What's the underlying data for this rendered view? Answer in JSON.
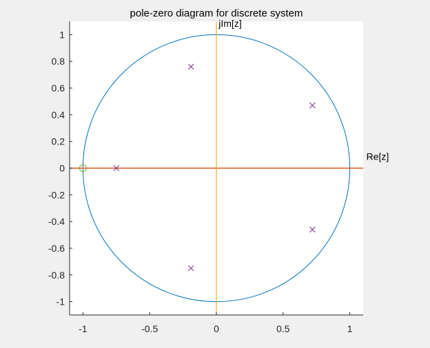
{
  "chart_data": {
    "type": "scatter",
    "title": "pole-zero diagram for discrete system",
    "xlabel": "",
    "ylabel": "",
    "annotations": {
      "real_axis": "Re[z]",
      "imag_axis": "jIm[z]"
    },
    "xlim": [
      -1.1,
      1.1
    ],
    "ylim": [
      -1.1,
      1.1
    ],
    "x_ticks": [
      -1,
      -0.5,
      0,
      0.5,
      1
    ],
    "x_tick_labels": [
      "-1",
      "-0.5",
      "0",
      "0.5",
      "1"
    ],
    "y_ticks": [
      1,
      0.8,
      0.6,
      0.4,
      0.2,
      0,
      -0.2,
      -0.4,
      -0.6,
      -0.8,
      -1
    ],
    "y_tick_labels": [
      "1",
      "0.8",
      "0.6",
      "0.4",
      "0.2",
      "0",
      "-0.2",
      "-0.4",
      "-0.6",
      "-0.8",
      "-1"
    ],
    "grid": false,
    "unit_circle": {
      "center": [
        0,
        0
      ],
      "radius": 1
    },
    "poles": [
      {
        "x": -0.19,
        "y": 0.76
      },
      {
        "x": 0.72,
        "y": 0.47
      },
      {
        "x": -0.75,
        "y": 0.0
      },
      {
        "x": 0.72,
        "y": -0.46
      },
      {
        "x": -0.19,
        "y": -0.75
      }
    ],
    "zeros": [
      {
        "x": -1.0,
        "y": 0.0
      }
    ],
    "colors": {
      "circle": "#0072bd",
      "real_axis_line": "#d95319",
      "imag_axis_line": "#edb120",
      "poles": "#7e2f8e",
      "zeros": "#77ac30",
      "plot_background": "#ffffff",
      "figure_background": "#f0f0f0",
      "axis": "#262626"
    }
  }
}
